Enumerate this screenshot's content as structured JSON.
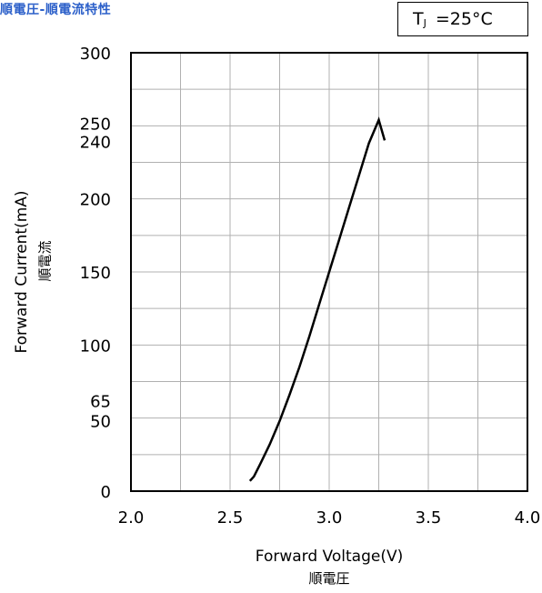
{
  "page_title": "順電圧-順電流特性",
  "condition": {
    "label_main": "T",
    "label_sub": "J",
    "label_rest": "=25°C"
  },
  "chart_data": {
    "type": "line",
    "xlabel": "Forward Voltage(V)",
    "xlabel_sub": "順電圧",
    "ylabel": "Forward Current(mA)",
    "ylabel_sub": "順電流",
    "xlim": [
      2.0,
      4.0
    ],
    "ylim": [
      0,
      300
    ],
    "x_ticks": [
      "2.0",
      "2.5",
      "3.0",
      "3.5",
      "4.0"
    ],
    "x_tick_values": [
      2.0,
      2.5,
      3.0,
      3.5,
      4.0
    ],
    "y_ticks": [
      "0",
      "50",
      "65",
      "100",
      "150",
      "200",
      "240",
      "250",
      "300"
    ],
    "y_tick_values": [
      0,
      50,
      65,
      100,
      150,
      200,
      240,
      250,
      300
    ],
    "x_grid": [
      2.25,
      2.5,
      2.75,
      3.0,
      3.25,
      3.5,
      3.75
    ],
    "y_grid": [
      25,
      50,
      75,
      100,
      125,
      150,
      175,
      200,
      225,
      250,
      275
    ],
    "grid": true,
    "series": [
      {
        "x": [
          2.6,
          2.62,
          2.65,
          2.7,
          2.75,
          2.8,
          2.85,
          2.9,
          2.95,
          3.0,
          3.05,
          3.1,
          3.15,
          3.2,
          3.25,
          3.28
        ],
        "y": [
          7,
          10,
          18,
          32,
          48,
          66,
          85,
          106,
          128,
          150,
          172,
          194,
          216,
          238,
          254,
          240
        ]
      }
    ]
  }
}
